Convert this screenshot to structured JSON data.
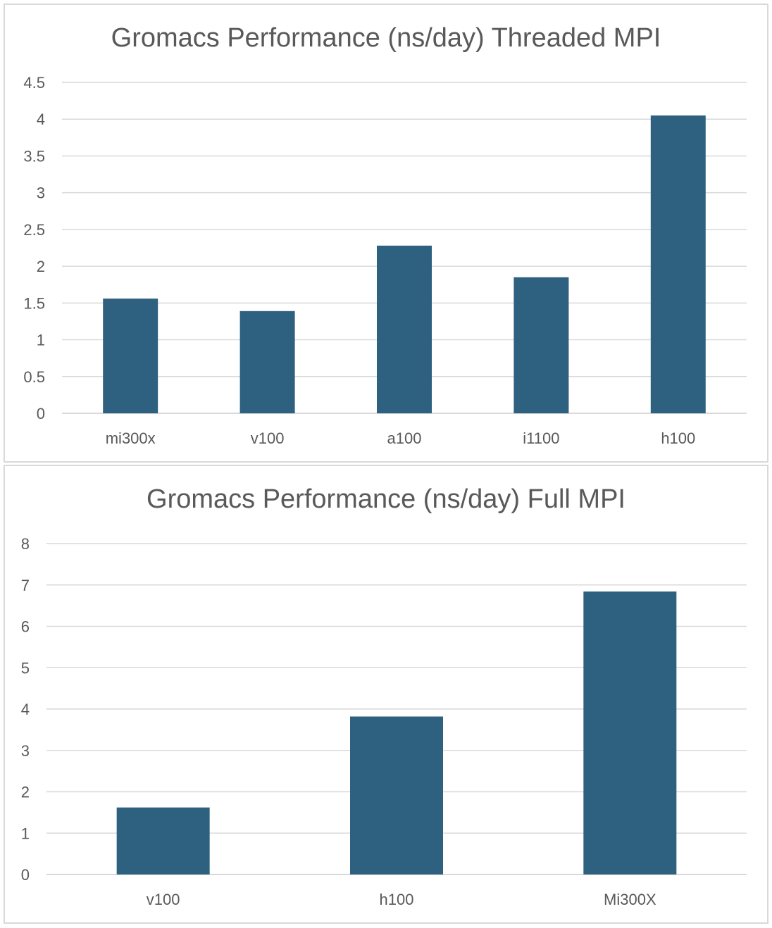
{
  "chart_data": [
    {
      "type": "bar",
      "title": "Gromacs Performance (ns/day) Threaded MPI",
      "categories": [
        "mi300x",
        "v100",
        "a100",
        "i1100",
        "h100"
      ],
      "values": [
        1.56,
        1.39,
        2.28,
        1.85,
        4.05
      ],
      "ylim": [
        0,
        4.5
      ],
      "yticks": [
        "0",
        "0.5",
        "1",
        "1.5",
        "2",
        "2.5",
        "3",
        "3.5",
        "4",
        "4.5"
      ],
      "grid": true,
      "bar_color": "#2e6080"
    },
    {
      "type": "bar",
      "title": "Gromacs Performance (ns/day) Full MPI",
      "categories": [
        "v100",
        "h100",
        "Mi300X"
      ],
      "values": [
        1.62,
        3.82,
        6.84
      ],
      "ylim": [
        0,
        8
      ],
      "yticks": [
        "0",
        "1",
        "2",
        "3",
        "4",
        "5",
        "6",
        "7",
        "8"
      ],
      "grid": true,
      "bar_color": "#2e6080"
    }
  ]
}
